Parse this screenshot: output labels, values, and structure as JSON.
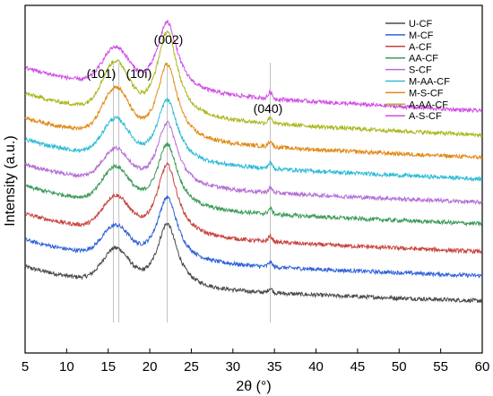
{
  "chart_data": {
    "type": "line",
    "xlabel": "2θ (°)",
    "ylabel": "Intensity (a.u.)",
    "xlim": [
      5,
      60
    ],
    "xticks": [
      5,
      10,
      15,
      20,
      25,
      30,
      35,
      40,
      45,
      50,
      55,
      60
    ],
    "yticks_shown": false,
    "grid": false,
    "legend_position": "top-right",
    "peaks": [
      {
        "label": "(101)",
        "x": 15.6
      },
      {
        "label": "(10ī)",
        "x": 16.3
      },
      {
        "label": "(002)",
        "x": 22.1
      },
      {
        "label": "(040)",
        "x": 34.5
      }
    ],
    "reference_lines_x": [
      15.6,
      16.3,
      22.1,
      34.5
    ],
    "series": [
      {
        "name": "U-CF",
        "color": "#4a4a4a",
        "offset": 0,
        "amp002": 72,
        "amp101": 36,
        "amp040": 5,
        "bg_start": 16,
        "bg_end": 0
      },
      {
        "name": "M-CF",
        "color": "#2f62d8",
        "offset": 28,
        "amp002": 72,
        "amp101": 32,
        "amp040": 5,
        "bg_start": 18,
        "bg_end": 0
      },
      {
        "name": "A-CF",
        "color": "#c8433d",
        "offset": 55,
        "amp002": 80,
        "amp101": 36,
        "amp040": 6,
        "bg_start": 20,
        "bg_end": 0
      },
      {
        "name": "AA-CF",
        "color": "#3e9b5a",
        "offset": 86,
        "amp002": 72,
        "amp101": 38,
        "amp040": 6,
        "bg_start": 20,
        "bg_end": 0
      },
      {
        "name": "S-CF",
        "color": "#b46fd6",
        "offset": 110,
        "amp002": 72,
        "amp101": 34,
        "amp040": 5,
        "bg_start": 20,
        "bg_end": 0
      },
      {
        "name": "M-AA-CF",
        "color": "#2fbcd6",
        "offset": 136,
        "amp002": 70,
        "amp101": 40,
        "amp040": 6,
        "bg_start": 22,
        "bg_end": 0
      },
      {
        "name": "M-S-CF",
        "color": "#e08a16",
        "offset": 160,
        "amp002": 86,
        "amp101": 50,
        "amp040": 6,
        "bg_start": 22,
        "bg_end": 0
      },
      {
        "name": "A-AA-CF",
        "color": "#aab81f",
        "offset": 185,
        "amp002": 96,
        "amp101": 52,
        "amp040": 7,
        "bg_start": 24,
        "bg_end": 0
      },
      {
        "name": "A-S-CF",
        "color": "#d14de6",
        "offset": 212,
        "amp002": 78,
        "amp101": 40,
        "amp040": 7,
        "bg_start": 26,
        "bg_end": 0
      }
    ]
  }
}
